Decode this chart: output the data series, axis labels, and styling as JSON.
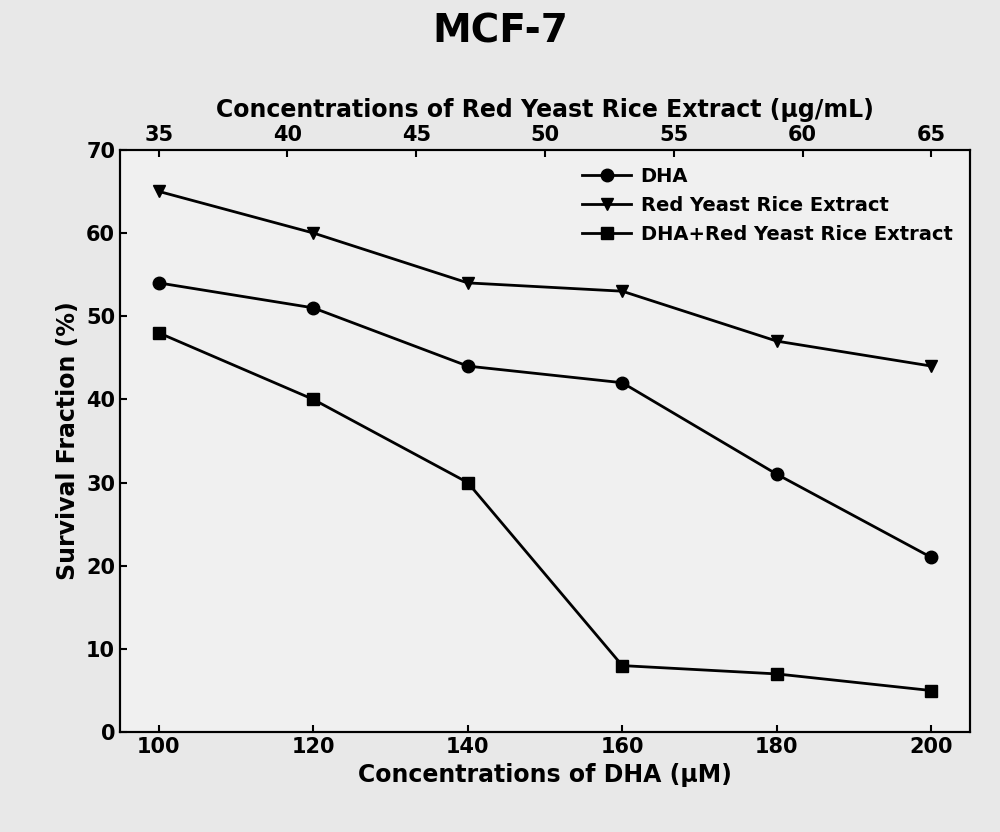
{
  "title": "MCF-7",
  "title_fontsize": 28,
  "title_fontweight": "bold",
  "xlabel_bottom": "Concentrations of DHA (μM)",
  "xlabel_top": "Concentrations of Red Yeast Rice Extract (μg/mL)",
  "ylabel": "Survival Fraction (%)",
  "axis_label_fontsize": 17,
  "x_bottom": [
    100,
    120,
    140,
    160,
    180,
    200
  ],
  "x_top_labels": [
    35,
    40,
    45,
    50,
    55,
    60,
    65
  ],
  "DHA_y": [
    54,
    51,
    44,
    42,
    31,
    21
  ],
  "RYRE_y": [
    65,
    60,
    54,
    53,
    47,
    44
  ],
  "combo_y": [
    48,
    40,
    30,
    8,
    7,
    5
  ],
  "ylim": [
    0,
    70
  ],
  "yticks": [
    0,
    10,
    20,
    30,
    40,
    50,
    60,
    70
  ],
  "line_color": "#000000",
  "marker_DHA": "o",
  "marker_RYRE": "v",
  "marker_combo": "s",
  "marker_size": 9,
  "linewidth": 2.0,
  "legend_labels": [
    "DHA",
    "Red Yeast Rice Extract",
    "DHA+Red Yeast Rice Extract"
  ],
  "legend_fontsize": 14,
  "bg_color": "#e8e8e8",
  "plot_bg_color": "#f0f0f0",
  "tick_fontsize": 15
}
